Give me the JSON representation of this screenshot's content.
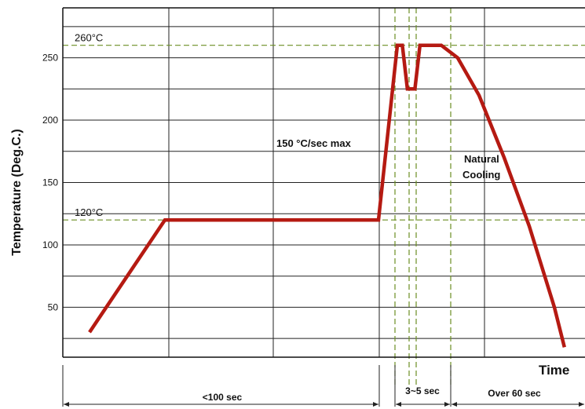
{
  "chart_data": {
    "type": "line",
    "ylabel": "Temperature (Deg.C.)",
    "xlabel": "Time",
    "ylim": [
      10,
      290
    ],
    "yticks": [
      50,
      100,
      150,
      200,
      250
    ],
    "grid": true,
    "series": [
      {
        "color": "#b51a12",
        "points": [
          [
            0,
            30
          ],
          [
            60,
            120
          ],
          [
            230,
            120
          ],
          [
            245,
            260
          ],
          [
            249,
            260
          ],
          [
            253,
            225
          ],
          [
            259,
            225
          ],
          [
            263,
            260
          ],
          [
            280,
            260
          ],
          [
            293,
            250
          ],
          [
            310,
            220
          ],
          [
            330,
            170
          ],
          [
            350,
            115
          ],
          [
            370,
            50
          ],
          [
            378,
            18
          ]
        ]
      }
    ],
    "reference_lines": [
      {
        "label": "260°C",
        "value": 260
      },
      {
        "label": "120°C",
        "value": 120
      }
    ],
    "annotations": [
      {
        "text": "150 °C/sec max"
      },
      {
        "text": "Natural"
      },
      {
        "text": "Cooling"
      }
    ],
    "durations": [
      {
        "text": "<100 sec"
      },
      {
        "text": "3~5 sec"
      },
      {
        "text": "Over 60 sec"
      }
    ]
  }
}
